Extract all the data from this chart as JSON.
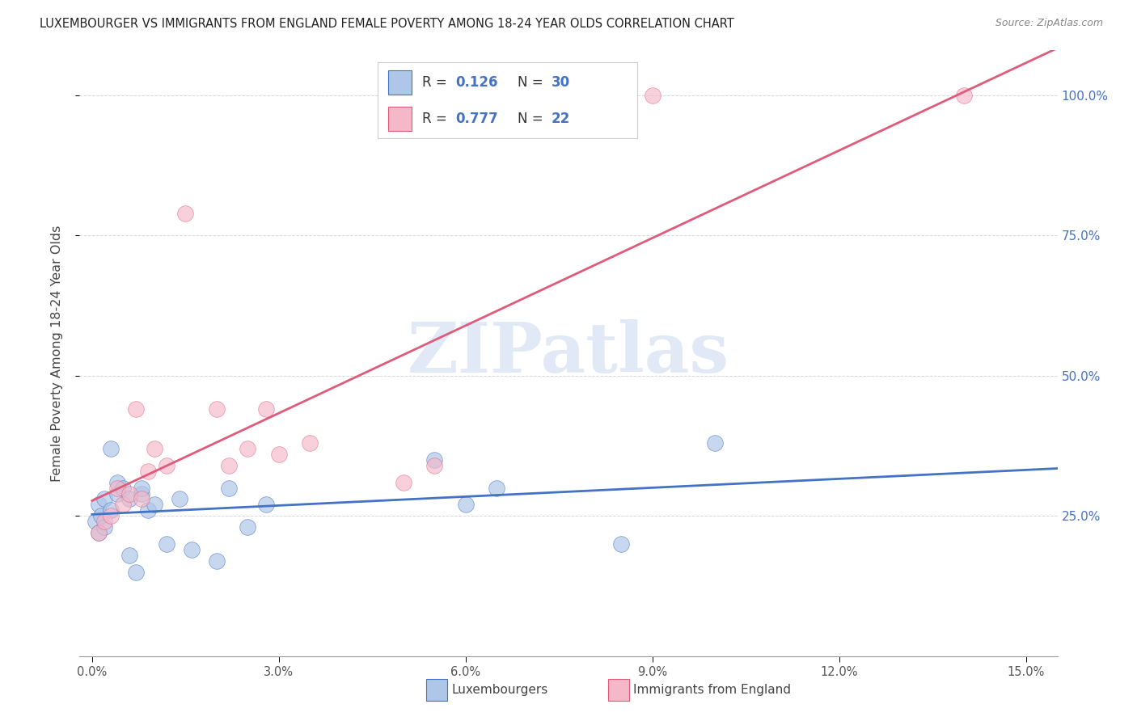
{
  "title": "LUXEMBOURGER VS IMMIGRANTS FROM ENGLAND FEMALE POVERTY AMONG 18-24 YEAR OLDS CORRELATION CHART",
  "source": "Source: ZipAtlas.com",
  "ylabel_left": "Female Poverty Among 18-24 Year Olds",
  "legend_label1": "Luxembourgers",
  "legend_label2": "Immigrants from England",
  "R1": "0.126",
  "N1": 30,
  "R2": "0.777",
  "N2": 22,
  "color1": "#aec6e8",
  "color2": "#f5b8c8",
  "line_color1": "#4472c4",
  "line_color2": "#e05a7a",
  "text_color": "#333333",
  "n_color": "#4472c4",
  "xlim": [
    0.0,
    0.15
  ],
  "ylim": [
    0.0,
    1.08
  ],
  "right_ytick_labels": [
    "25.0%",
    "50.0%",
    "75.0%",
    "100.0%"
  ],
  "right_ytick_vals": [
    0.25,
    0.5,
    0.75,
    1.0
  ],
  "blue_scatter_x": [
    0.0005,
    0.001,
    0.001,
    0.0015,
    0.002,
    0.002,
    0.003,
    0.003,
    0.004,
    0.004,
    0.005,
    0.006,
    0.006,
    0.007,
    0.008,
    0.008,
    0.009,
    0.01,
    0.012,
    0.014,
    0.016,
    0.02,
    0.022,
    0.025,
    0.028,
    0.055,
    0.06,
    0.065,
    0.085,
    0.1
  ],
  "blue_scatter_y": [
    0.24,
    0.27,
    0.22,
    0.25,
    0.28,
    0.23,
    0.37,
    0.26,
    0.29,
    0.31,
    0.3,
    0.28,
    0.18,
    0.15,
    0.29,
    0.3,
    0.26,
    0.27,
    0.2,
    0.28,
    0.19,
    0.17,
    0.3,
    0.23,
    0.27,
    0.35,
    0.27,
    0.3,
    0.2,
    0.38
  ],
  "pink_scatter_x": [
    0.001,
    0.002,
    0.003,
    0.004,
    0.005,
    0.006,
    0.007,
    0.008,
    0.009,
    0.01,
    0.012,
    0.015,
    0.02,
    0.022,
    0.025,
    0.028,
    0.03,
    0.035,
    0.05,
    0.055,
    0.09,
    0.14
  ],
  "pink_scatter_y": [
    0.22,
    0.24,
    0.25,
    0.3,
    0.27,
    0.29,
    0.44,
    0.28,
    0.33,
    0.37,
    0.34,
    0.79,
    0.44,
    0.34,
    0.37,
    0.44,
    0.36,
    0.38,
    0.31,
    0.34,
    1.0,
    1.0
  ],
  "watermark": "ZIPatlas",
  "background_color": "#ffffff",
  "grid_color": "#d8d8d8"
}
